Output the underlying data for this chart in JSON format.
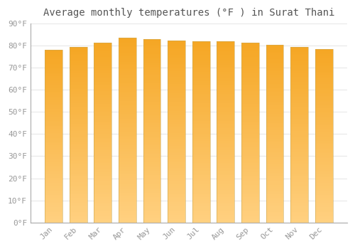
{
  "title": "Average monthly temperatures (°F ) in Surat Thani",
  "months": [
    "Jan",
    "Feb",
    "Mar",
    "Apr",
    "May",
    "Jun",
    "Jul",
    "Aug",
    "Sep",
    "Oct",
    "Nov",
    "Dec"
  ],
  "values": [
    78,
    79.5,
    81.5,
    83.5,
    83,
    82.5,
    82,
    82,
    81.5,
    80.5,
    79.5,
    78.5
  ],
  "ylim": [
    0,
    90
  ],
  "yticks": [
    0,
    10,
    20,
    30,
    40,
    50,
    60,
    70,
    80,
    90
  ],
  "ytick_labels": [
    "0°F",
    "10°F",
    "20°F",
    "30°F",
    "40°F",
    "50°F",
    "60°F",
    "70°F",
    "80°F",
    "90°F"
  ],
  "title_fontsize": 10,
  "tick_fontsize": 8,
  "background_color": "#ffffff",
  "plot_bg_color": "#ffffff",
  "grid_color": "#e8e8e8",
  "bar_color_top": "#F5A623",
  "bar_color_bottom": "#FFD080",
  "bar_width": 0.72,
  "n_gradient_segments": 100,
  "tick_color": "#999999",
  "title_color": "#555555",
  "spine_color": "#aaaaaa"
}
